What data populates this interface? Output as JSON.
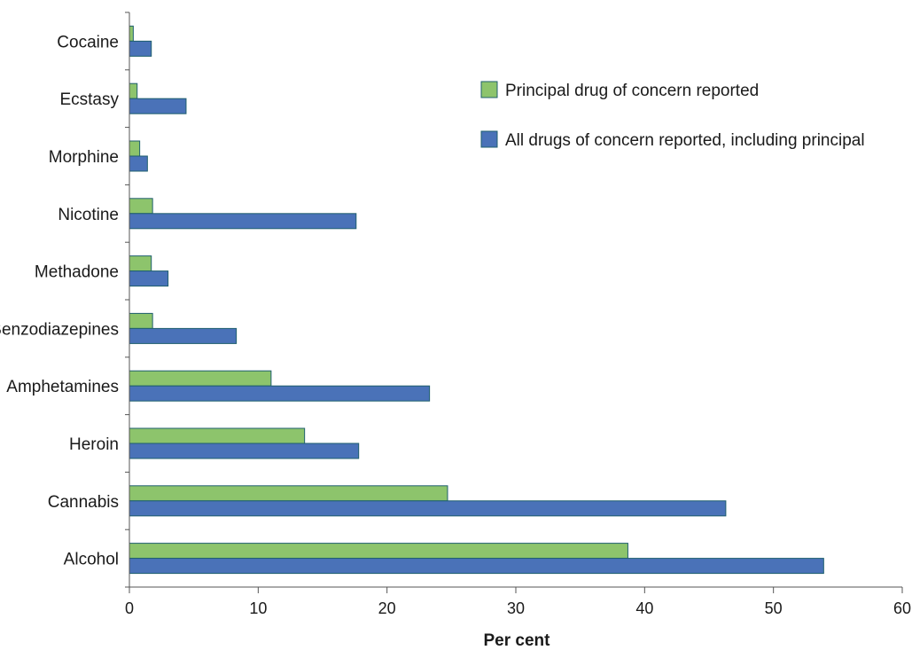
{
  "chart_data": {
    "type": "bar",
    "orientation": "horizontal",
    "title": "",
    "xlabel": "Per cent",
    "ylabel": "",
    "categories": [
      "Cocaine",
      "Ecstasy",
      "Morphine",
      "Nicotine",
      "Methadone",
      "Benzodiazepines",
      "Amphetamines",
      "Heroin",
      "Cannabis",
      "Alcohol"
    ],
    "series": [
      {
        "name": "Principal drug of concern reported",
        "color": "#8dc46c",
        "values": [
          0.3,
          0.6,
          0.8,
          1.8,
          1.7,
          1.8,
          11.0,
          13.6,
          24.7,
          38.7
        ]
      },
      {
        "name": "All drugs of concern reported, including principal",
        "color": "#4a72b8",
        "values": [
          1.7,
          4.4,
          1.4,
          17.6,
          3.0,
          8.3,
          23.3,
          17.8,
          46.3,
          53.9
        ]
      }
    ],
    "xlim": [
      0,
      60
    ],
    "xticks": [
      0,
      10,
      20,
      30,
      40,
      50,
      60
    ],
    "grid": false,
    "legend_position": "top-right"
  }
}
